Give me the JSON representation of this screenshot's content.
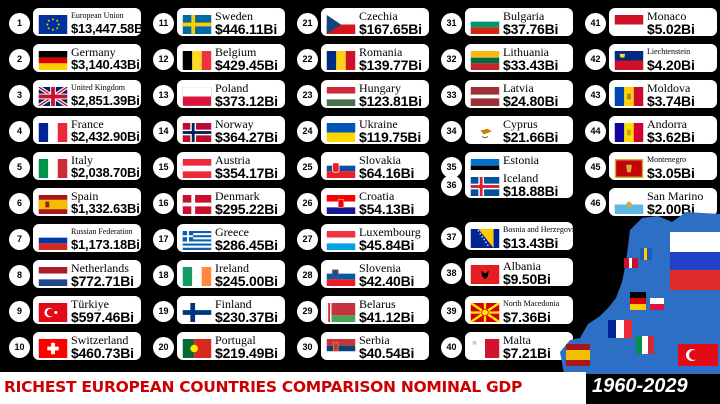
{
  "countries": [
    {
      "rank": "1",
      "name": "European Union",
      "value": "$13,447.58Bi",
      "flag": "eu-flag",
      "small": true
    },
    {
      "rank": "2",
      "name": "Germany",
      "value": "$3,140.43Bi",
      "flag": "germany-flag"
    },
    {
      "rank": "3",
      "name": "United Kingdom",
      "value": "$2,851.39Bi",
      "flag": "uk-flag",
      "small": true
    },
    {
      "rank": "4",
      "name": "France",
      "value": "$2,432.90Bi",
      "flag": "france-flag"
    },
    {
      "rank": "5",
      "name": "Italy",
      "value": "$2,038.70Bi",
      "flag": "italy-flag"
    },
    {
      "rank": "6",
      "name": "Spain",
      "value": "$1,332.63Bi",
      "flag": "spain-flag"
    },
    {
      "rank": "7",
      "name": "Russian Federation",
      "value": "$1,173.18Bi",
      "flag": "russia-flag",
      "small": true
    },
    {
      "rank": "8",
      "name": "Netherlands",
      "value": "$772.71Bi",
      "flag": "netherlands-flag"
    },
    {
      "rank": "9",
      "name": "Türkiye",
      "value": "$597.46Bi",
      "flag": "turkiye-flag"
    },
    {
      "rank": "10",
      "name": "Switzerland",
      "value": "$460.73Bi",
      "flag": "switzerland-flag"
    },
    {
      "rank": "11",
      "name": "Sweden",
      "value": "$446.11Bi",
      "flag": "sweden-flag"
    },
    {
      "rank": "12",
      "name": "Belgium",
      "value": "$429.45Bi",
      "flag": "belgium-flag"
    },
    {
      "rank": "13",
      "name": "Poland",
      "value": "$373.12Bi",
      "flag": "poland-flag"
    },
    {
      "rank": "14",
      "name": "Norway",
      "value": "$364.27Bi",
      "flag": "norway-flag"
    },
    {
      "rank": "15",
      "name": "Austria",
      "value": "$354.17Bi",
      "flag": "austria-flag"
    },
    {
      "rank": "16",
      "name": "Denmark",
      "value": "$295.22Bi",
      "flag": "denmark-flag"
    },
    {
      "rank": "17",
      "name": "Greece",
      "value": "$286.45Bi",
      "flag": "greece-flag"
    },
    {
      "rank": "18",
      "name": "Ireland",
      "value": "$245.00Bi",
      "flag": "ireland-flag"
    },
    {
      "rank": "19",
      "name": "Finland",
      "value": "$230.37Bi",
      "flag": "finland-flag"
    },
    {
      "rank": "20",
      "name": "Portugal",
      "value": "$219.49Bi",
      "flag": "portugal-flag"
    },
    {
      "rank": "21",
      "name": "Czechia",
      "value": "$167.65Bi",
      "flag": "czechia-flag"
    },
    {
      "rank": "22",
      "name": "Romania",
      "value": "$139.77Bi",
      "flag": "romania-flag"
    },
    {
      "rank": "23",
      "name": "Hungary",
      "value": "$123.81Bi",
      "flag": "hungary-flag"
    },
    {
      "rank": "24",
      "name": "Ukraine",
      "value": "$119.75Bi",
      "flag": "ukraine-flag"
    },
    {
      "rank": "25",
      "name": "Slovakia",
      "value": "$64.16Bi",
      "flag": "slovakia-flag"
    },
    {
      "rank": "26",
      "name": "Croatia",
      "value": "$54.13Bi",
      "flag": "croatia-flag"
    },
    {
      "rank": "27",
      "name": "Luxembourg",
      "value": "$45.84Bi",
      "flag": "luxembourg-flag"
    },
    {
      "rank": "28",
      "name": "Slovenia",
      "value": "$42.40Bi",
      "flag": "slovenia-flag"
    },
    {
      "rank": "29",
      "name": "Belarus",
      "value": "$41.12Bi",
      "flag": "belarus-flag"
    },
    {
      "rank": "30",
      "name": "Serbia",
      "value": "$40.54Bi",
      "flag": "serbia-flag"
    },
    {
      "rank": "31",
      "name": "Bulgaria",
      "value": "$37.76Bi",
      "flag": "bulgaria-flag"
    },
    {
      "rank": "32",
      "name": "Lithuania",
      "value": "$33.43Bi",
      "flag": "lithuania-flag"
    },
    {
      "rank": "33",
      "name": "Latvia",
      "value": "$24.80Bi",
      "flag": "latvia-flag"
    },
    {
      "rank": "34",
      "name": "Cyprus",
      "value": "$21.66Bi",
      "flag": "cyprus-flag"
    },
    {
      "rank": "35",
      "name": "Estonia",
      "value": "",
      "flag": "estonia-flag"
    },
    {
      "rank": "36",
      "name": "Iceland",
      "value": "$18.88Bi",
      "flag": "iceland-flag"
    },
    {
      "rank": "37",
      "name": "Bosnia and Herzegovina",
      "value": "$13.43Bi",
      "flag": "bosnia-flag",
      "small": true
    },
    {
      "rank": "38",
      "name": "Albania",
      "value": "$9.50Bi",
      "flag": "albania-flag"
    },
    {
      "rank": "39",
      "name": "North Macedonia",
      "value": "$7.36Bi",
      "flag": "north-macedonia-flag",
      "small": true
    },
    {
      "rank": "40",
      "name": "Malta",
      "value": "$7.21Bi",
      "flag": "malta-flag"
    },
    {
      "rank": "41",
      "name": "Monaco",
      "value": "$5.02Bi",
      "flag": "monaco-flag"
    },
    {
      "rank": "42",
      "name": "Liechtenstein",
      "value": "$4.20Bi",
      "flag": "liechtenstein-flag",
      "small": true
    },
    {
      "rank": "43",
      "name": "Moldova",
      "value": "$3.74Bi",
      "flag": "moldova-flag"
    },
    {
      "rank": "44",
      "name": "Andorra",
      "value": "$3.62Bi",
      "flag": "andorra-flag"
    },
    {
      "rank": "45",
      "name": "Montenegro",
      "value": "$3.05Bi",
      "flag": "montenegro-flag",
      "small": true
    },
    {
      "rank": "46",
      "name": "San Marino",
      "value": "$2.00Bi",
      "flag": "san-marino-flag"
    }
  ],
  "title": "RICHEST EUROPEAN COUNTRIES COMPARISON  NOMINAL GDP",
  "years": "1960-2029",
  "colors": {
    "title_red": "#cc0000",
    "background": "#000000",
    "card": "#ffffff"
  }
}
